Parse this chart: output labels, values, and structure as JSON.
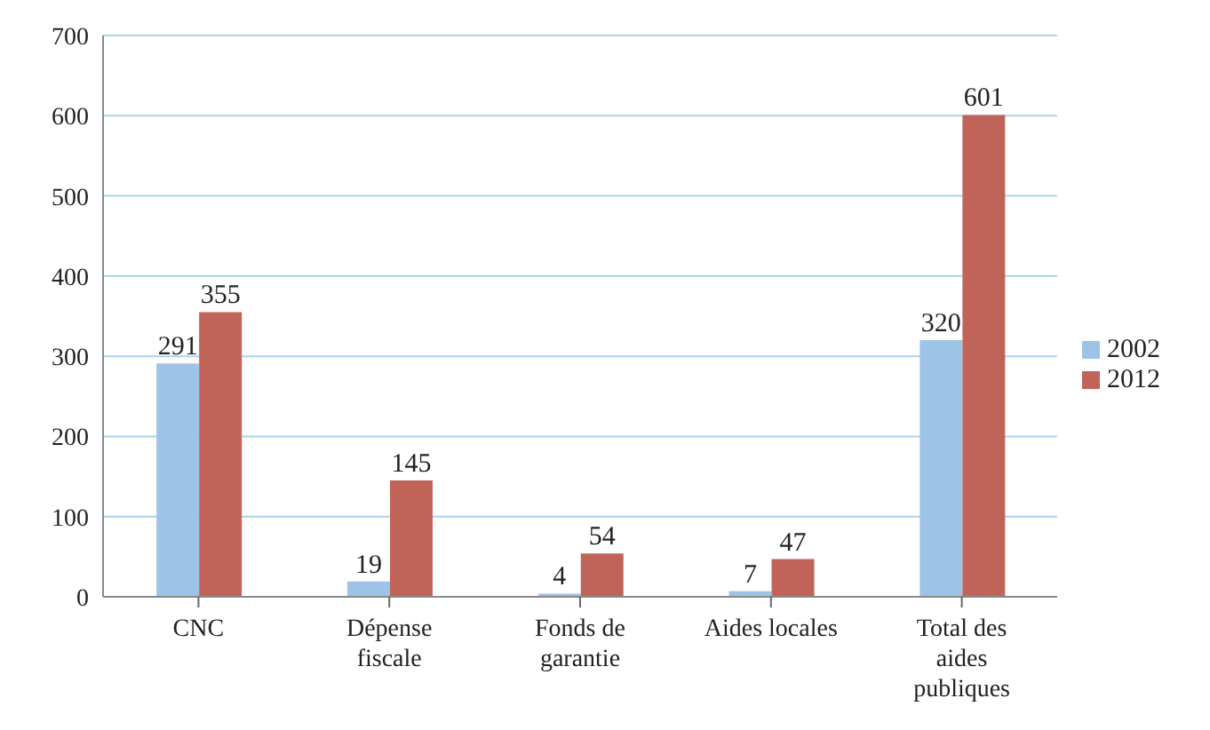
{
  "chart_data": {
    "type": "bar",
    "categories": [
      "CNC",
      "Dépense fiscale",
      "Fonds de garantie",
      "Aides locales",
      "Total des aides publiques"
    ],
    "series": [
      {
        "name": "2002",
        "color": "#9dc3e6",
        "values": [
          291,
          19,
          4,
          7,
          320
        ]
      },
      {
        "name": "2012",
        "color": "#c0645a",
        "values": [
          355,
          145,
          54,
          47,
          601
        ]
      }
    ],
    "ylim": [
      0,
      700
    ],
    "yticks": [
      0,
      100,
      200,
      300,
      400,
      500,
      600,
      700
    ],
    "grid": "y",
    "legend": "right",
    "data_labels": true
  }
}
